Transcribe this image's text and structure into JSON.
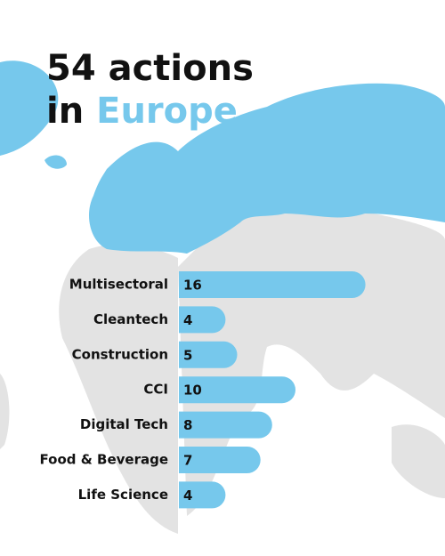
{
  "chart_data": {
    "type": "bar",
    "orientation": "horizontal",
    "title": {
      "line1": "54 actions",
      "line2_prefix": "in",
      "line2_highlight": "Europe"
    },
    "categories": [
      "Multisectoral",
      "Cleantech",
      "Construction",
      "CCI",
      "Digital Tech",
      "Food & Beverage",
      "Life Science"
    ],
    "values": [
      16,
      4,
      5,
      10,
      8,
      7,
      4
    ],
    "color": "#76c8ec"
  }
}
